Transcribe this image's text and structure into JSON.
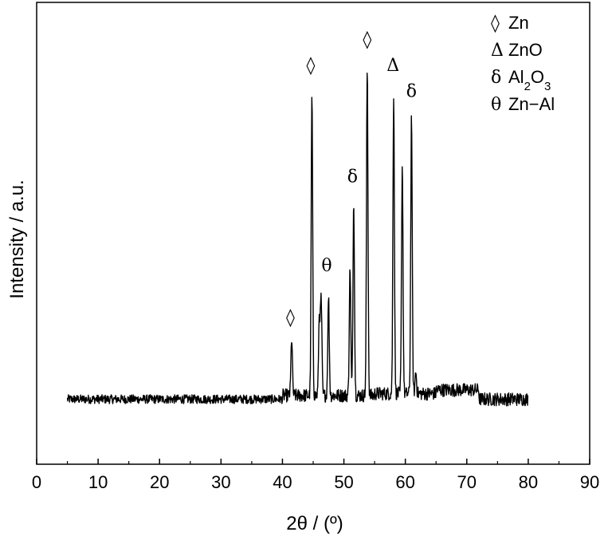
{
  "chart_data": {
    "type": "line",
    "xlabel": "2θ / (º)",
    "ylabel": "Intensity / a.u.",
    "xlim": [
      0,
      90
    ],
    "xticks": [
      0,
      10,
      20,
      30,
      40,
      50,
      60,
      70,
      80,
      90
    ],
    "ylim": [
      0,
      100
    ],
    "y_tick_labels": false,
    "grid": false,
    "legend_position": "top-right",
    "legend": [
      {
        "symbol": "◊",
        "label": "Zn"
      },
      {
        "symbol": "Δ",
        "label": "ZnO"
      },
      {
        "symbol": "δ",
        "label": "Al2O3"
      },
      {
        "symbol": "θ",
        "label": "Zn−Al"
      }
    ],
    "baseline": {
      "ranges": [
        {
          "x0": 5,
          "x1": 40,
          "level": 8.5
        },
        {
          "x0": 40,
          "x1": 55,
          "level": 9.5
        },
        {
          "x0": 55,
          "x1": 65,
          "level": 10
        },
        {
          "x0": 65,
          "x1": 72,
          "level": 11
        },
        {
          "x0": 72,
          "x1": 80,
          "level": 8.5
        }
      ],
      "noise_amplitude": 1.2
    },
    "peaks": [
      {
        "x": 41.5,
        "y": 25
      },
      {
        "x": 44.8,
        "y": 90
      },
      {
        "x": 46.0,
        "y": 31
      },
      {
        "x": 46.3,
        "y": 35
      },
      {
        "x": 47.5,
        "y": 36
      },
      {
        "x": 51.0,
        "y": 44
      },
      {
        "x": 51.6,
        "y": 62
      },
      {
        "x": 53.8,
        "y": 98
      },
      {
        "x": 58.1,
        "y": 91
      },
      {
        "x": 59.5,
        "y": 72
      },
      {
        "x": 61.0,
        "y": 85
      },
      {
        "x": 61.7,
        "y": 16
      }
    ],
    "annotations": [
      {
        "symbol": "◊",
        "x": 41.3,
        "y": 29
      },
      {
        "symbol": "◊",
        "x": 44.6,
        "y": 97
      },
      {
        "symbol": "θ",
        "x": 47.2,
        "y": 43
      },
      {
        "symbol": "δ",
        "x": 51.4,
        "y": 67
      },
      {
        "symbol": "◊",
        "x": 53.8,
        "y": 104
      },
      {
        "symbol": "Δ",
        "x": 58.0,
        "y": 97
      },
      {
        "symbol": "δ",
        "x": 61.0,
        "y": 90
      }
    ]
  }
}
